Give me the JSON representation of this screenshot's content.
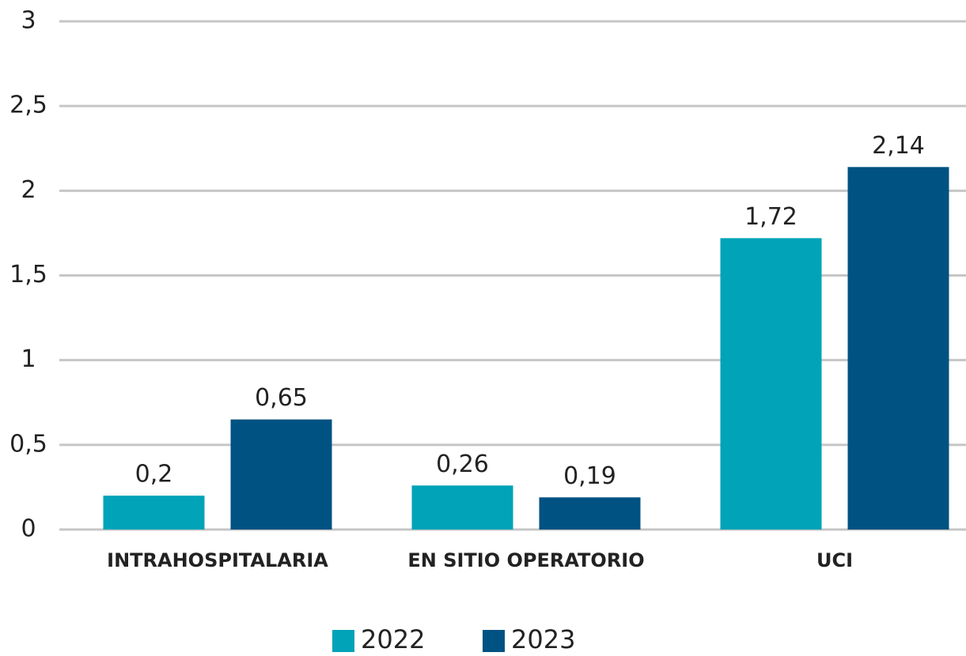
{
  "chart_data": {
    "type": "bar",
    "categories": [
      "INTRAHOSPITALARIA",
      "EN SITIO OPERATORIO",
      "UCI"
    ],
    "series": [
      {
        "name": "2022",
        "color": "#00a3b8",
        "values": [
          0.2,
          0.26,
          1.72
        ],
        "value_labels": [
          "0,2",
          "0,26",
          "1,72"
        ]
      },
      {
        "name": "2023",
        "color": "#005282",
        "values": [
          0.65,
          0.19,
          2.14
        ],
        "value_labels": [
          "0,65",
          "0,19",
          "2,14"
        ]
      }
    ],
    "ylim": [
      0,
      3
    ],
    "yticks": [
      0,
      {
        "value": 0.5,
        "label": "0,5"
      },
      1,
      {
        "value": 1.5,
        "label": "1,5"
      },
      2,
      {
        "value": 2.5,
        "label": "2,5"
      },
      3
    ],
    "grid": true,
    "legend": "bottom"
  }
}
